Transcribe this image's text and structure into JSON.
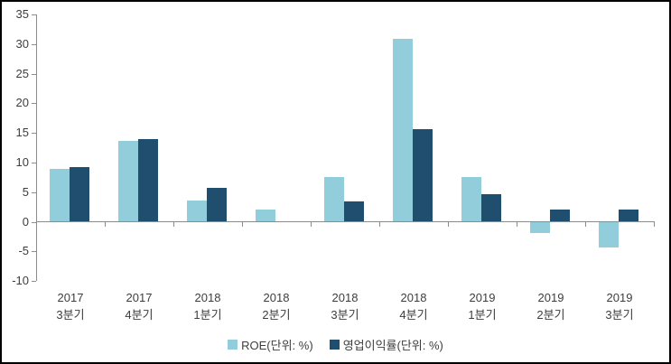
{
  "chart_data": {
    "type": "bar",
    "title": "",
    "xlabel": "",
    "ylabel": "",
    "categories": [
      {
        "year": "2017",
        "quarter": "3분기"
      },
      {
        "year": "2017",
        "quarter": "4분기"
      },
      {
        "year": "2018",
        "quarter": "1분기"
      },
      {
        "year": "2018",
        "quarter": "2분기"
      },
      {
        "year": "2018",
        "quarter": "3분기"
      },
      {
        "year": "2018",
        "quarter": "4분기"
      },
      {
        "year": "2019",
        "quarter": "1분기"
      },
      {
        "year": "2019",
        "quarter": "2분기"
      },
      {
        "year": "2019",
        "quarter": "3분기"
      }
    ],
    "series": [
      {
        "name": "ROE(단위: %)",
        "color": "#92CDDC",
        "values": [
          8.9,
          13.6,
          3.6,
          2.1,
          7.5,
          30.9,
          7.5,
          -1.9,
          -4.3
        ]
      },
      {
        "name": "영업이익률(단위: %)",
        "color": "#1F4E6E",
        "values": [
          9.2,
          14.0,
          5.7,
          0,
          3.4,
          15.7,
          4.6,
          2.0,
          2.0
        ]
      }
    ],
    "ylim": [
      -10,
      35
    ],
    "y_ticks": [
      35,
      30,
      25,
      20,
      15,
      10,
      5,
      0,
      -5,
      -10
    ],
    "grid": false,
    "legend_position": "bottom",
    "axis_color": "#8C8C8C",
    "text_color": "#3D3D3D",
    "background_color": "#FFFFFF"
  }
}
